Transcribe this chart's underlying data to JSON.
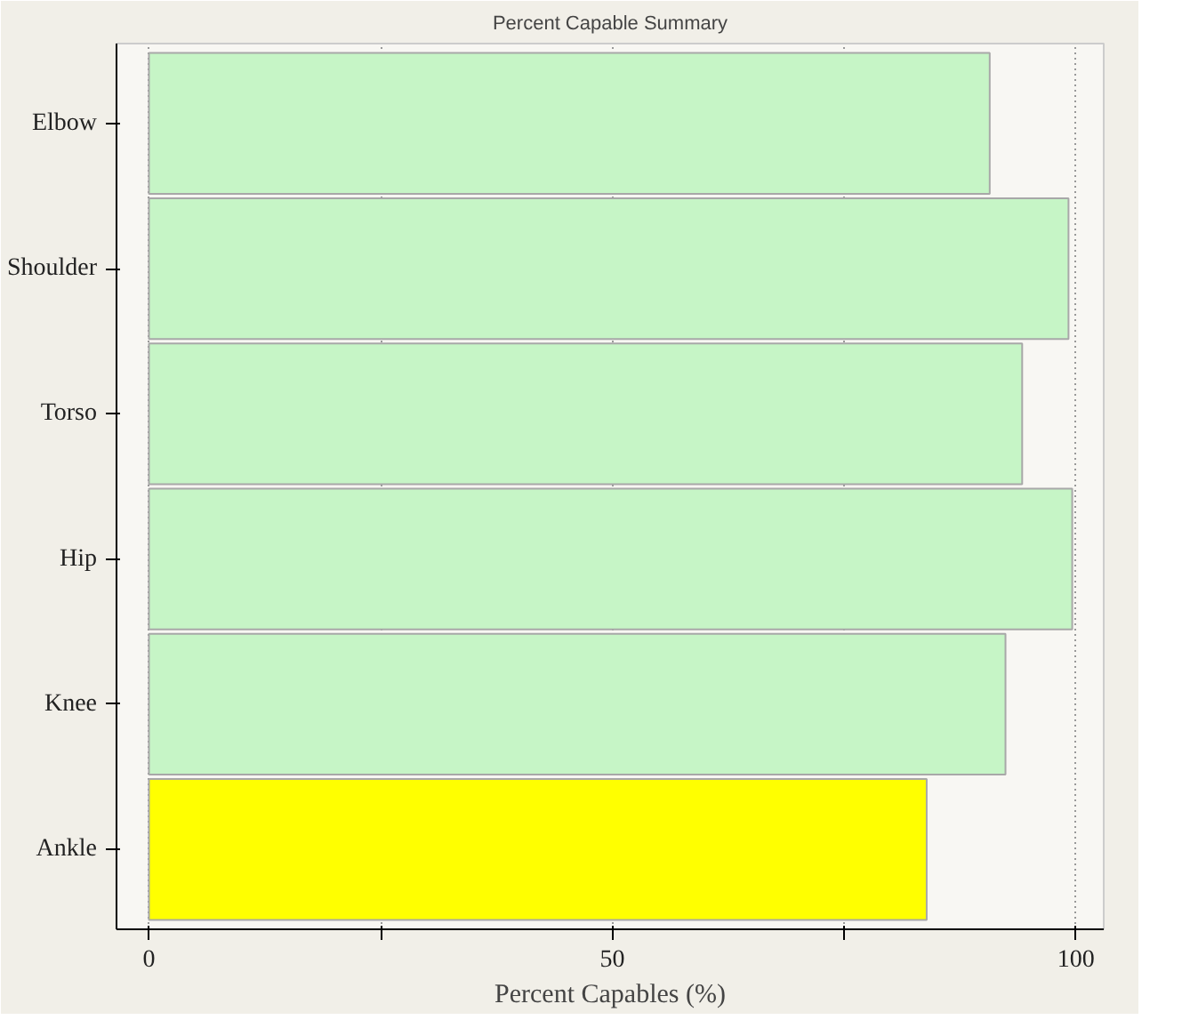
{
  "chart_data": {
    "type": "bar",
    "orientation": "horizontal",
    "title": "Percent Capable Summary",
    "xlabel": "Percent Capables (%)",
    "categories": [
      "Elbow",
      "Shoulder",
      "Torso",
      "Hip",
      "Knee",
      "Ankle"
    ],
    "values": [
      90.7,
      99.2,
      94.2,
      99.6,
      92.4,
      83.9
    ],
    "colors": [
      "#c6f5c6",
      "#c6f5c6",
      "#c6f5c6",
      "#c6f5c6",
      "#c6f5c6",
      "#ffff00"
    ],
    "xlim": [
      -3.5,
      103
    ],
    "xticks": [
      0,
      {
        "value": 25,
        "label": null
      },
      50,
      {
        "value": 75,
        "label": null
      },
      100
    ],
    "grid": "x"
  }
}
